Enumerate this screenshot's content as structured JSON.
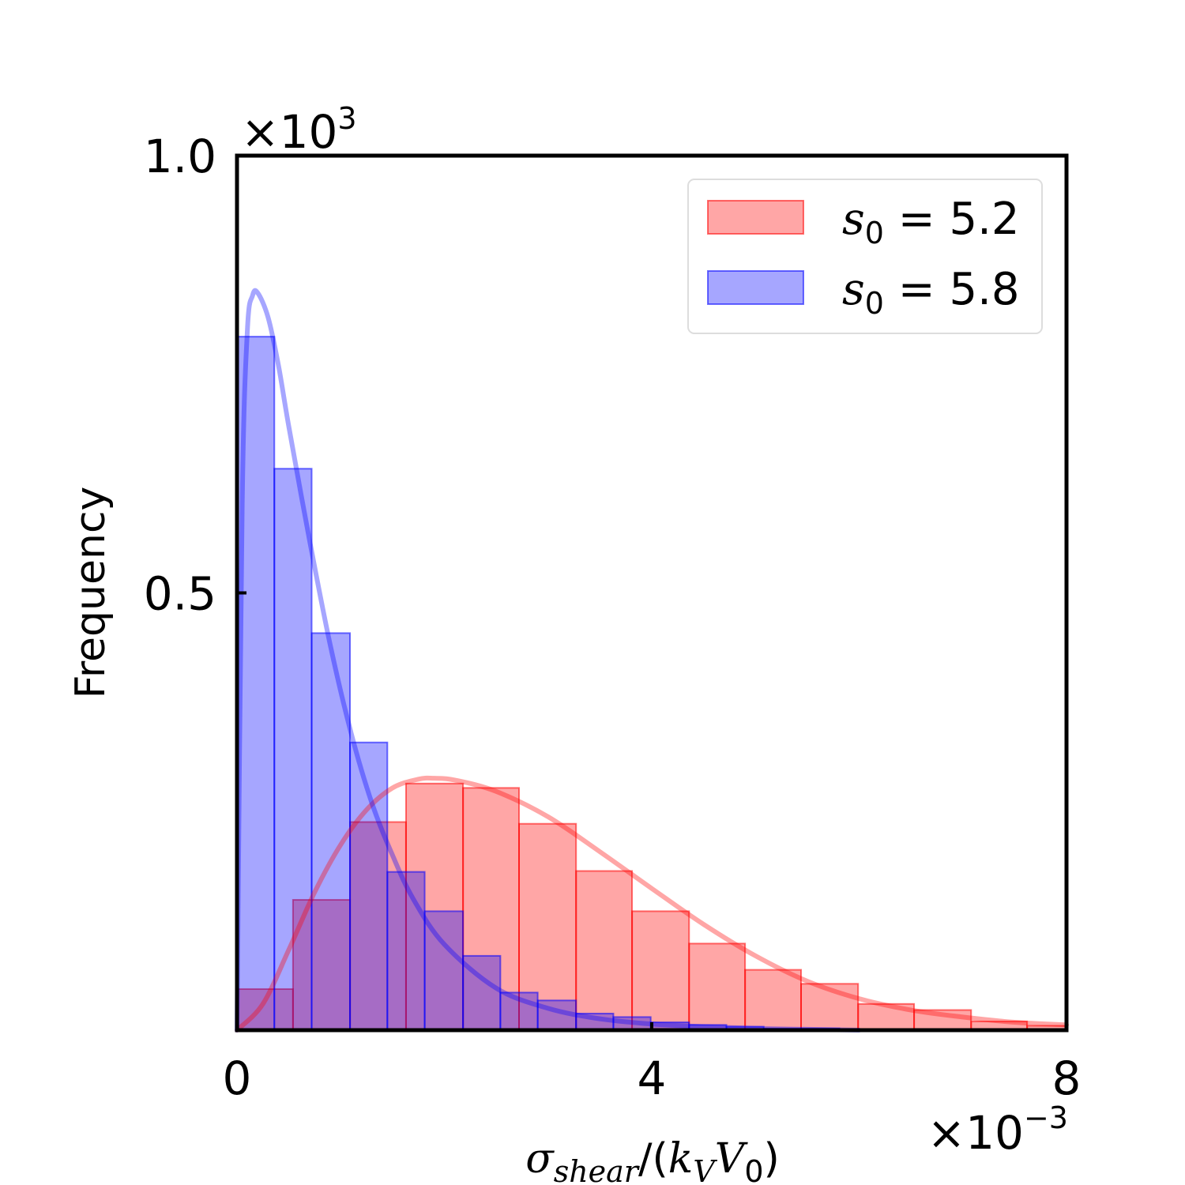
{
  "chart_data": {
    "type": "bar",
    "subtype": "overlapping histogram with fitted density curves",
    "xlim": [
      0,
      8
    ],
    "ylim": [
      0,
      1.0
    ],
    "x_ticks": [
      0,
      4,
      8
    ],
    "y_ticks": [
      0.5,
      1.0
    ],
    "x_tick_labels": [
      "0",
      "4",
      "8"
    ],
    "y_tick_labels": [
      "0.5",
      "1.0"
    ],
    "x_multiplier": "×10",
    "x_multiplier_exp": "−3",
    "y_multiplier": "×10",
    "y_multiplier_exp": "3",
    "ylabel": "Frequency",
    "xlabel": {
      "sigma": "σ",
      "sub": "shear",
      "open": "/(",
      "k": "k",
      "k_sub": "V",
      "v": "V",
      "v_sub": "0",
      "close": ")"
    },
    "legend_position": "top-right",
    "grid": false,
    "series": [
      {
        "name": "s0 = 5.2",
        "legend_main": "s",
        "legend_sub": "0",
        "legend_rest": " = 5.2",
        "color": "#ff0000",
        "fill_opacity": 0.35,
        "bins": [
          {
            "x0": 0.0,
            "x1": 0.54,
            "value": 0.047
          },
          {
            "x0": 0.54,
            "x1": 1.09,
            "value": 0.149
          },
          {
            "x0": 1.09,
            "x1": 1.63,
            "value": 0.238
          },
          {
            "x0": 1.63,
            "x1": 2.18,
            "value": 0.282
          },
          {
            "x0": 2.18,
            "x1": 2.72,
            "value": 0.277
          },
          {
            "x0": 2.72,
            "x1": 3.27,
            "value": 0.236
          },
          {
            "x0": 3.27,
            "x1": 3.81,
            "value": 0.182
          },
          {
            "x0": 3.81,
            "x1": 4.36,
            "value": 0.136
          },
          {
            "x0": 4.36,
            "x1": 4.9,
            "value": 0.099
          },
          {
            "x0": 4.9,
            "x1": 5.44,
            "value": 0.069
          },
          {
            "x0": 5.44,
            "x1": 5.99,
            "value": 0.053
          },
          {
            "x0": 5.99,
            "x1": 6.53,
            "value": 0.03
          },
          {
            "x0": 6.53,
            "x1": 7.08,
            "value": 0.023
          },
          {
            "x0": 7.08,
            "x1": 7.62,
            "value": 0.01
          },
          {
            "x0": 7.62,
            "x1": 8.0,
            "value": 0.005
          }
        ],
        "curve": {
          "x": [
            0.0,
            0.25,
            0.5,
            0.75,
            1.0,
            1.25,
            1.5,
            1.75,
            1.9,
            2.1,
            2.5,
            3.0,
            3.5,
            4.0,
            4.5,
            5.0,
            5.5,
            6.0,
            6.5,
            7.0,
            7.5,
            8.0
          ],
          "y": [
            0.0,
            0.03,
            0.092,
            0.158,
            0.212,
            0.252,
            0.277,
            0.287,
            0.288,
            0.286,
            0.273,
            0.244,
            0.204,
            0.162,
            0.121,
            0.085,
            0.056,
            0.036,
            0.023,
            0.015,
            0.009,
            0.006
          ]
        }
      },
      {
        "name": "s0 = 5.8",
        "legend_main": "s",
        "legend_sub": "0",
        "legend_rest": " = 5.8",
        "color": "#0000ff",
        "fill_opacity": 0.35,
        "bins": [
          {
            "x0": 0.0,
            "x1": 0.36,
            "value": 0.793
          },
          {
            "x0": 0.36,
            "x1": 0.72,
            "value": 0.642
          },
          {
            "x0": 0.72,
            "x1": 1.09,
            "value": 0.454
          },
          {
            "x0": 1.09,
            "x1": 1.45,
            "value": 0.329
          },
          {
            "x0": 1.45,
            "x1": 1.81,
            "value": 0.181
          },
          {
            "x0": 1.81,
            "x1": 2.18,
            "value": 0.136
          },
          {
            "x0": 2.18,
            "x1": 2.54,
            "value": 0.085
          },
          {
            "x0": 2.54,
            "x1": 2.9,
            "value": 0.043
          },
          {
            "x0": 2.9,
            "x1": 3.27,
            "value": 0.034
          },
          {
            "x0": 3.27,
            "x1": 3.63,
            "value": 0.019
          },
          {
            "x0": 3.63,
            "x1": 3.99,
            "value": 0.015
          },
          {
            "x0": 3.99,
            "x1": 4.36,
            "value": 0.009
          },
          {
            "x0": 4.36,
            "x1": 4.72,
            "value": 0.006
          },
          {
            "x0": 4.72,
            "x1": 5.08,
            "value": 0.004
          },
          {
            "x0": 5.08,
            "x1": 5.44,
            "value": 0.002
          },
          {
            "x0": 5.44,
            "x1": 5.81,
            "value": 0.002
          },
          {
            "x0": 5.81,
            "x1": 6.17,
            "value": 0.001
          }
        ],
        "curve": {
          "x": [
            0.0,
            0.05,
            0.1,
            0.15,
            0.2,
            0.3,
            0.4,
            0.5,
            0.7,
            0.9,
            1.1,
            1.3,
            1.5,
            1.7,
            2.0,
            2.5,
            3.0,
            3.5,
            4.0,
            4.5,
            5.0,
            5.5,
            6.0
          ],
          "y": [
            0.0,
            0.6,
            0.8,
            0.84,
            0.843,
            0.815,
            0.76,
            0.69,
            0.56,
            0.44,
            0.34,
            0.26,
            0.2,
            0.15,
            0.098,
            0.048,
            0.025,
            0.013,
            0.007,
            0.004,
            0.002,
            0.001,
            0.0
          ]
        }
      }
    ]
  }
}
